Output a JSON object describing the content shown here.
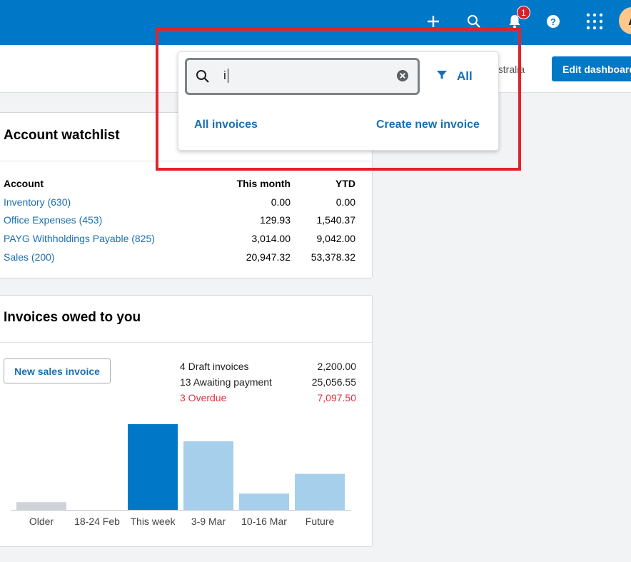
{
  "header": {
    "icons": [
      "add-icon",
      "search-icon",
      "bell-icon",
      "help-icon",
      "apps-grid-icon"
    ],
    "notification_count": "1",
    "avatar_initial": "A",
    "brand_color": "#0078c8"
  },
  "subheader": {
    "org_text": "ustralia",
    "edit_dashboard_label": "Edit dashboard"
  },
  "search_popover": {
    "query": "i",
    "filter_label": "All",
    "links": {
      "all_invoices": "All invoices",
      "create_new_invoice": "Create new invoice"
    }
  },
  "watchlist": {
    "title": "Account watchlist",
    "columns": {
      "account": "Account",
      "this_month": "This month",
      "ytd": "YTD"
    },
    "rows": [
      {
        "account": "Inventory (630)",
        "this_month": "0.00",
        "ytd": "0.00"
      },
      {
        "account": "Office Expenses (453)",
        "this_month": "129.93",
        "ytd": "1,540.37"
      },
      {
        "account": "PAYG Withholdings Payable (825)",
        "this_month": "3,014.00",
        "ytd": "9,042.00"
      },
      {
        "account": "Sales (200)",
        "this_month": "20,947.32",
        "ytd": "53,378.32"
      }
    ]
  },
  "invoices": {
    "title": "Invoices owed to you",
    "new_button_label": "New sales invoice",
    "summary": [
      {
        "label": "4 Draft invoices",
        "value": "2,200.00"
      },
      {
        "label": "13 Awaiting payment",
        "value": "25,056.55"
      },
      {
        "label": "3 Overdue",
        "value": "7,097.50"
      }
    ]
  },
  "chart_data": {
    "type": "bar",
    "categories": [
      "Older",
      "18-24 Feb",
      "This week",
      "3-9 Mar",
      "10-16 Mar",
      "Future"
    ],
    "values": [
      0.09,
      0,
      1.0,
      0.8,
      0.19,
      0.42
    ],
    "colors": [
      "#cfd3d7",
      "#cfd3d7",
      "#0078c8",
      "#a6cfec",
      "#a6cfec",
      "#a6cfec"
    ]
  }
}
